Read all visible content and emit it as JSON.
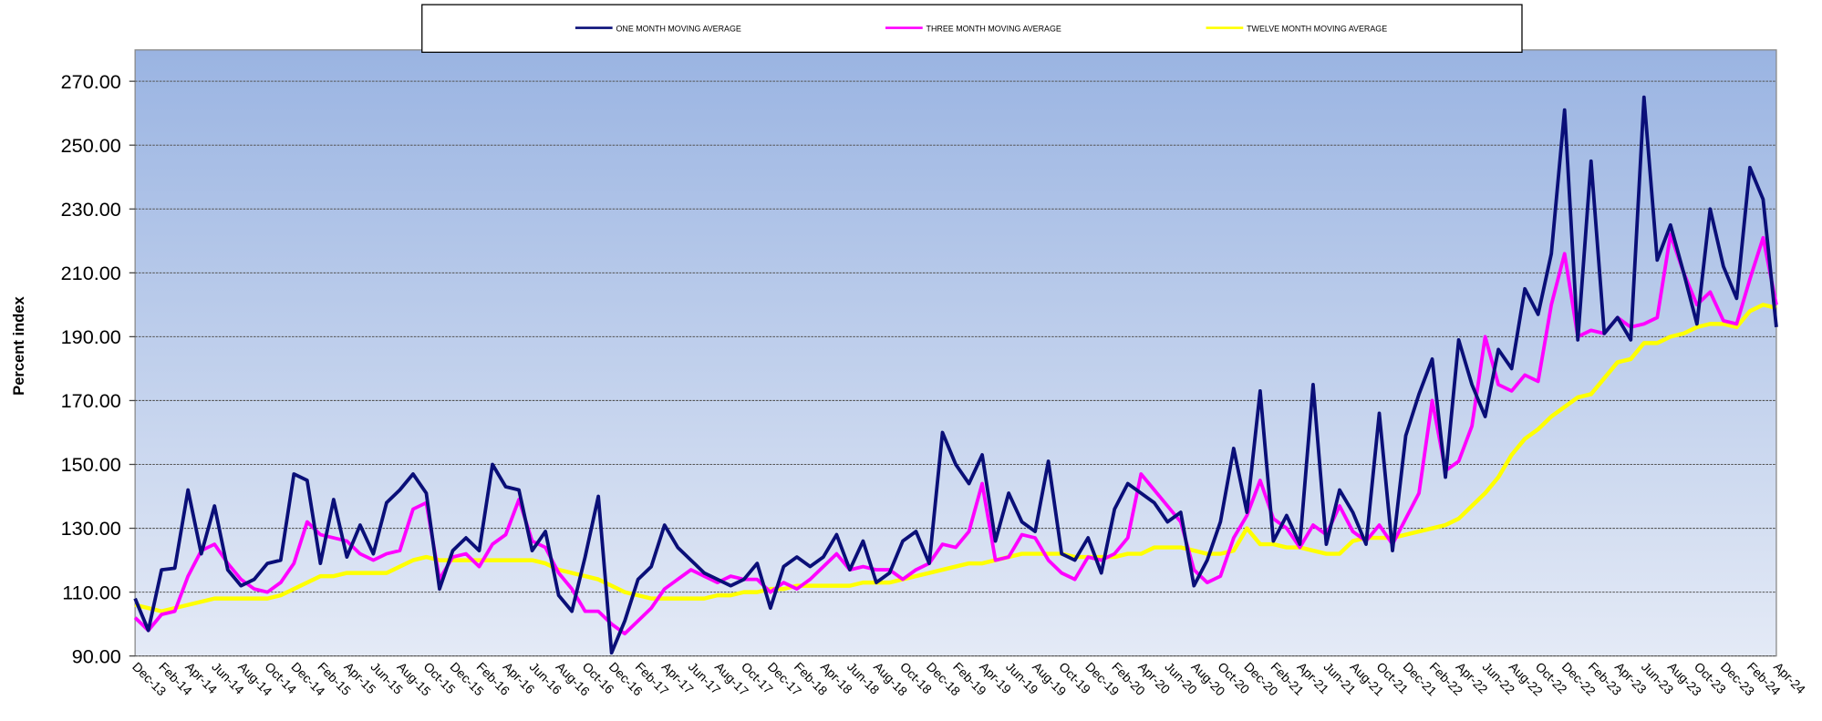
{
  "chart_data": {
    "type": "line",
    "y_label": "Percent index",
    "categories": [
      "Dec-13",
      null,
      "Feb-14",
      null,
      "Apr-14",
      null,
      "Jun-14",
      null,
      "Aug-14",
      null,
      "Oct-14",
      null,
      "Dec-14",
      null,
      "Feb-15",
      null,
      "Apr-15",
      null,
      "Jun-15",
      null,
      "Aug-15",
      null,
      "Oct-15",
      null,
      "Dec-15",
      null,
      "Feb-16",
      null,
      "Apr-16",
      null,
      "Jun-16",
      null,
      "Aug-16",
      null,
      "Oct-16",
      null,
      "Dec-16",
      null,
      "Feb-17",
      null,
      "Apr-17",
      null,
      "Jun-17",
      null,
      "Aug-17",
      null,
      "Oct-17",
      null,
      "Dec-17",
      null,
      "Feb-18",
      null,
      "Apr-18",
      null,
      "Jun-18",
      null,
      "Aug-18",
      null,
      "Oct-18",
      null,
      "Dec-18",
      null,
      "Feb-19",
      null,
      "Apr-19",
      null,
      "Jun-19",
      null,
      "Aug-19",
      null,
      "Oct-19",
      null,
      "Dec-19",
      null,
      "Feb-20",
      null,
      "Apr-20",
      null,
      "Jun-20",
      null,
      "Aug-20",
      null,
      "Oct-20",
      null,
      "Dec-20",
      null,
      "Feb-21",
      null,
      "Apr-21",
      null,
      "Jun-21",
      null,
      "Aug-21",
      null,
      "Oct-21",
      null,
      "Dec-21",
      null,
      "Feb-22",
      null,
      "Apr-22",
      null,
      "Jun-22",
      null,
      "Aug-22",
      null,
      "Oct-22",
      null,
      "Dec-22",
      null,
      "Feb-23",
      null,
      "Apr-23",
      null,
      "Jun-23",
      null,
      "Aug-23",
      null,
      "Oct-23",
      null,
      "Dec-23",
      null,
      "Feb-24",
      null,
      "Apr-24"
    ],
    "series": [
      {
        "name": "ONE MONTH MOVING AVERAGE",
        "color": "#0a0f78",
        "width": 3,
        "values": [
          108,
          98,
          117,
          117.5,
          142,
          122,
          137,
          117,
          112,
          114,
          119,
          120,
          147,
          145,
          119,
          139,
          121,
          131,
          122,
          138,
          142,
          147,
          141,
          111,
          123,
          127,
          123,
          150,
          143,
          142,
          123,
          129,
          109,
          104,
          121,
          140,
          91,
          101,
          114,
          118,
          131,
          124,
          120,
          116,
          114,
          112,
          114,
          119,
          105,
          118,
          121,
          118,
          121,
          128,
          117,
          126,
          113,
          116,
          126,
          129,
          119,
          160,
          150,
          144,
          153,
          126,
          141,
          132,
          129,
          151,
          122,
          120,
          127,
          116,
          136,
          144,
          141,
          138,
          132,
          135,
          112,
          120,
          132,
          155,
          135,
          173,
          126,
          134,
          125,
          175,
          125,
          142,
          135,
          125,
          166,
          123,
          159,
          172,
          183,
          146,
          189,
          175,
          165,
          186,
          180,
          205,
          197,
          216,
          261,
          189,
          245,
          191,
          196,
          189,
          265,
          214,
          225,
          210,
          194,
          230,
          212,
          202,
          243,
          233,
          193
        ]
      },
      {
        "name": "THREE MONTH MOVING AVERAGE",
        "color": "#ff00ff",
        "width": 3,
        "values": [
          102,
          98,
          103,
          104,
          115,
          123,
          125,
          119,
          114,
          111,
          110,
          113,
          119,
          132,
          128,
          127,
          126,
          122,
          120,
          122,
          123,
          136,
          138,
          114,
          121,
          122,
          118,
          125,
          128,
          139,
          126,
          124,
          116,
          111,
          104,
          104,
          100,
          97,
          101,
          105,
          111,
          114,
          117,
          115,
          113,
          115,
          114,
          114,
          110,
          113,
          111,
          114,
          118,
          122,
          117,
          118,
          117,
          117,
          114,
          117,
          119,
          125,
          124,
          129,
          144,
          120,
          121,
          128,
          127,
          120,
          116,
          114,
          121,
          120,
          122,
          127,
          147,
          142,
          137,
          132,
          117,
          113,
          115,
          127,
          134,
          145,
          133,
          130,
          124,
          131,
          128,
          137,
          129,
          126,
          131,
          125,
          133,
          141,
          170,
          148,
          151,
          162,
          190,
          175,
          173,
          178,
          176,
          200,
          216,
          190,
          192,
          191,
          196,
          193,
          194,
          196,
          222,
          210,
          200,
          204,
          195,
          194,
          208,
          221,
          200
        ]
      },
      {
        "name": "TWELVE MONTH MOVING AVERAGE",
        "color": "#ffff00",
        "width": 3.5,
        "values": [
          106,
          105,
          104,
          105,
          106,
          107,
          108,
          108,
          108,
          108,
          108,
          109,
          111,
          113,
          115,
          115,
          116,
          116,
          116,
          116,
          118,
          120,
          121,
          120,
          120,
          120,
          120,
          120,
          120,
          120,
          120,
          119,
          117,
          116,
          115,
          114,
          112,
          110,
          109,
          108,
          108,
          108,
          108,
          108,
          109,
          109,
          110,
          110,
          111,
          111,
          112,
          112,
          112,
          112,
          112,
          113,
          113,
          113,
          114,
          115,
          116,
          117,
          118,
          119,
          119,
          120,
          121,
          122,
          122,
          122,
          122,
          121,
          121,
          121,
          121,
          122,
          122,
          124,
          124,
          124,
          123,
          122,
          122,
          123,
          130,
          125,
          125,
          124,
          124,
          123,
          122,
          122,
          126,
          127,
          127,
          127,
          128,
          129,
          130,
          131,
          133,
          137,
          141,
          146,
          153,
          158,
          161,
          165,
          168,
          171,
          172,
          177,
          182,
          183,
          188,
          188,
          190,
          191,
          193,
          194,
          194,
          193,
          198,
          200,
          199
        ]
      }
    ],
    "ylim": [
      90,
      270
    ],
    "yticks": [
      {
        "value": 90,
        "label": "90.00"
      },
      {
        "value": 110,
        "label": "110.00"
      },
      {
        "value": 130,
        "label": "130.00"
      },
      {
        "value": 150,
        "label": "150.00"
      },
      {
        "value": 170,
        "label": "170.00"
      },
      {
        "value": 190,
        "label": "190.00"
      },
      {
        "value": 210,
        "label": "210.00"
      },
      {
        "value": 230,
        "label": "230.00"
      },
      {
        "value": 250,
        "label": "250.00"
      },
      {
        "value": 270,
        "label": "270.00"
      }
    ],
    "grid": true,
    "legend": "top"
  }
}
